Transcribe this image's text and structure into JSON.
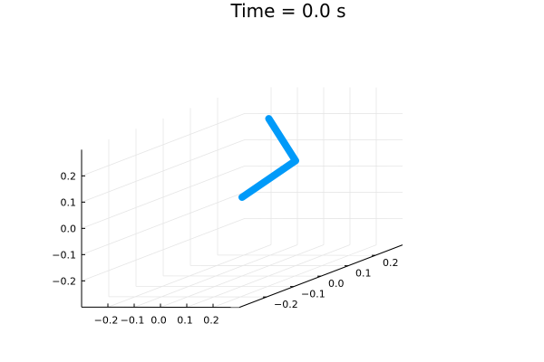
{
  "chart_data": {
    "type": "line3d",
    "title": "Time = 0.0 s",
    "grid": true,
    "legend": "none",
    "series_color": "#009af9",
    "grid_color": "#e6e6e6",
    "axis_color": "#000000",
    "xlim": [
      -0.3,
      0.3
    ],
    "ylim": [
      -0.3,
      0.3
    ],
    "zlim": [
      -0.3,
      0.3
    ],
    "x_ticks": [
      {
        "value": -0.2,
        "label": "−0.2"
      },
      {
        "value": -0.1,
        "label": "−0.1"
      },
      {
        "value": 0.0,
        "label": "0.0"
      },
      {
        "value": 0.1,
        "label": "0.1"
      },
      {
        "value": 0.2,
        "label": "0.2"
      }
    ],
    "y_ticks": [
      {
        "value": -0.2,
        "label": "−0.2"
      },
      {
        "value": -0.1,
        "label": "−0.1"
      },
      {
        "value": 0.0,
        "label": "0.0"
      },
      {
        "value": 0.1,
        "label": "0.1"
      },
      {
        "value": 0.2,
        "label": "0.2"
      }
    ],
    "z_ticks": [
      {
        "value": -0.2,
        "label": "−0.2"
      },
      {
        "value": -0.1,
        "label": "−0.1"
      },
      {
        "value": 0.0,
        "label": "0.0"
      },
      {
        "value": 0.1,
        "label": "0.1"
      },
      {
        "value": 0.2,
        "label": "0.2"
      }
    ],
    "series": [
      {
        "points": [
          {
            "x": 0.0,
            "y": 0.0,
            "z": 0.0
          },
          {
            "x": 0.1,
            "y": 0.1,
            "z": 0.1
          },
          {
            "x": 0.05,
            "y": 0.05,
            "z": 0.28
          }
        ]
      }
    ]
  }
}
